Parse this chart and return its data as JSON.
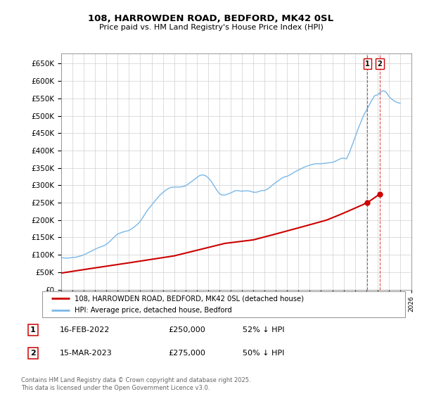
{
  "title": "108, HARROWDEN ROAD, BEDFORD, MK42 0SL",
  "subtitle": "Price paid vs. HM Land Registry's House Price Index (HPI)",
  "ylim": [
    0,
    680000
  ],
  "xlim_start": 1995,
  "xlim_end": 2026,
  "hpi_color": "#7ab8e8",
  "price_color": "#cc0000",
  "legend_label_price": "108, HARROWDEN ROAD, BEDFORD, MK42 0SL (detached house)",
  "legend_label_hpi": "HPI: Average price, detached house, Bedford",
  "annotation1_label": "1",
  "annotation1_date": "16-FEB-2022",
  "annotation1_price": "£250,000",
  "annotation1_pct": "52% ↓ HPI",
  "annotation2_label": "2",
  "annotation2_date": "15-MAR-2023",
  "annotation2_price": "£275,000",
  "annotation2_pct": "50% ↓ HPI",
  "footer": "Contains HM Land Registry data © Crown copyright and database right 2025.\nThis data is licensed under the Open Government Licence v3.0.",
  "hpi_x": [
    1995.0,
    1995.25,
    1995.5,
    1995.75,
    1996.0,
    1996.25,
    1996.5,
    1996.75,
    1997.0,
    1997.25,
    1997.5,
    1997.75,
    1998.0,
    1998.25,
    1998.5,
    1998.75,
    1999.0,
    1999.25,
    1999.5,
    1999.75,
    2000.0,
    2000.25,
    2000.5,
    2000.75,
    2001.0,
    2001.25,
    2001.5,
    2001.75,
    2002.0,
    2002.25,
    2002.5,
    2002.75,
    2003.0,
    2003.25,
    2003.5,
    2003.75,
    2004.0,
    2004.25,
    2004.5,
    2004.75,
    2005.0,
    2005.25,
    2005.5,
    2005.75,
    2006.0,
    2006.25,
    2006.5,
    2006.75,
    2007.0,
    2007.25,
    2007.5,
    2007.75,
    2008.0,
    2008.25,
    2008.5,
    2008.75,
    2009.0,
    2009.25,
    2009.5,
    2009.75,
    2010.0,
    2010.25,
    2010.5,
    2010.75,
    2011.0,
    2011.25,
    2011.5,
    2011.75,
    2012.0,
    2012.25,
    2012.5,
    2012.75,
    2013.0,
    2013.25,
    2013.5,
    2013.75,
    2014.0,
    2014.25,
    2014.5,
    2014.75,
    2015.0,
    2015.25,
    2015.5,
    2015.75,
    2016.0,
    2016.25,
    2016.5,
    2016.75,
    2017.0,
    2017.25,
    2017.5,
    2017.75,
    2018.0,
    2018.25,
    2018.5,
    2018.75,
    2019.0,
    2019.25,
    2019.5,
    2019.75,
    2020.0,
    2020.25,
    2020.5,
    2020.75,
    2021.0,
    2021.25,
    2021.5,
    2021.75,
    2022.0,
    2022.25,
    2022.5,
    2022.75,
    2023.0,
    2023.25,
    2023.5,
    2023.75,
    2024.0,
    2024.25,
    2024.5,
    2024.75,
    2025.0
  ],
  "hpi_y": [
    92000,
    91000,
    90500,
    91000,
    92500,
    93000,
    95000,
    97000,
    100000,
    104000,
    108000,
    112000,
    116000,
    120000,
    123000,
    126000,
    130000,
    137000,
    145000,
    153000,
    160000,
    163000,
    166000,
    168000,
    170000,
    175000,
    181000,
    188000,
    196000,
    209000,
    222000,
    233000,
    243000,
    253000,
    263000,
    272000,
    279000,
    286000,
    291000,
    294000,
    295000,
    295000,
    295000,
    296000,
    298000,
    304000,
    310000,
    316000,
    322000,
    328000,
    330000,
    328000,
    322000,
    313000,
    300000,
    287000,
    276000,
    272000,
    272000,
    275000,
    278000,
    282000,
    285000,
    284000,
    283000,
    284000,
    284000,
    283000,
    280000,
    280000,
    282000,
    285000,
    285000,
    289000,
    295000,
    302000,
    308000,
    314000,
    320000,
    324000,
    326000,
    330000,
    335000,
    340000,
    344000,
    348000,
    352000,
    355000,
    358000,
    360000,
    362000,
    362000,
    362000,
    363000,
    364000,
    365000,
    366000,
    369000,
    373000,
    377000,
    378000,
    376000,
    393000,
    415000,
    437000,
    460000,
    480000,
    500000,
    515000,
    530000,
    545000,
    558000,
    560000,
    568000,
    572000,
    568000,
    556000,
    548000,
    542000,
    538000,
    536000
  ],
  "price_x": [
    1995.0,
    1997.5,
    2001.0,
    2005.0,
    2009.5,
    2012.0,
    2014.0,
    2016.5,
    2018.5,
    2020.0,
    2022.1,
    2023.2
  ],
  "price_y": [
    47500,
    60000,
    77000,
    97000,
    133000,
    143000,
    160000,
    182000,
    200000,
    220000,
    250000,
    275000
  ],
  "sale1_x": 2022.1,
  "sale1_y": 250000,
  "sale2_x": 2023.2,
  "sale2_y": 275000
}
